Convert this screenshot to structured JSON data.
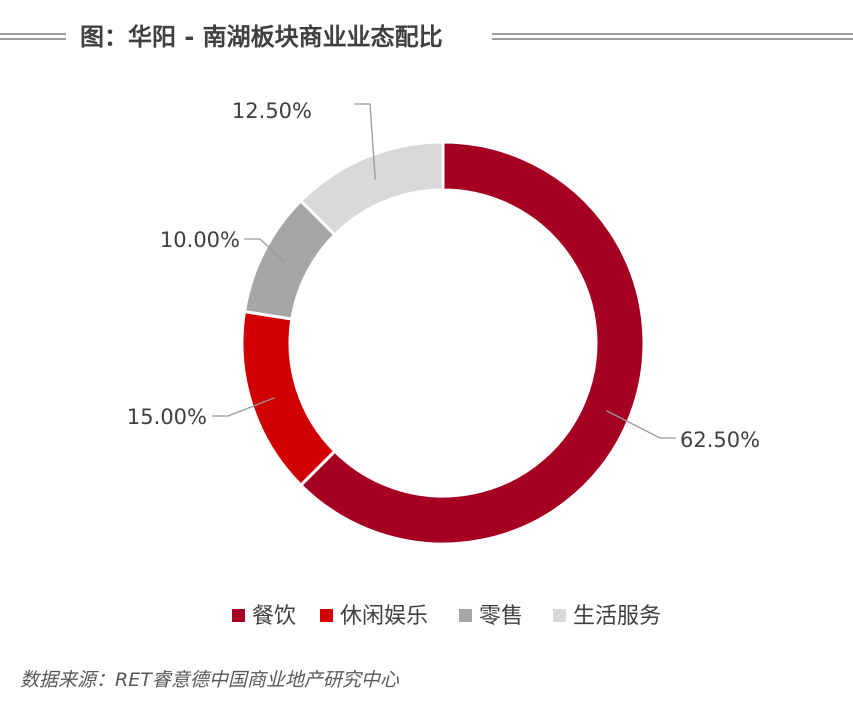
{
  "title": "图：华阳 - 南湖板块商业业态配比",
  "source": "数据来源：RET睿意德中国商业地产研究中心",
  "chart_data": {
    "type": "pie",
    "donut": true,
    "title": "图：华阳 - 南湖板块商业业态配比",
    "categories": [
      "餐饮",
      "休闲娱乐",
      "零售",
      "生活服务"
    ],
    "values": [
      62.5,
      15.0,
      10.0,
      12.5
    ],
    "labels": [
      "62.50%",
      "15.00%",
      "10.00%",
      "12.50%"
    ],
    "colors": [
      "#A50021",
      "#D00000",
      "#A6A6A6",
      "#D9D9D9"
    ],
    "legend_position": "bottom"
  }
}
